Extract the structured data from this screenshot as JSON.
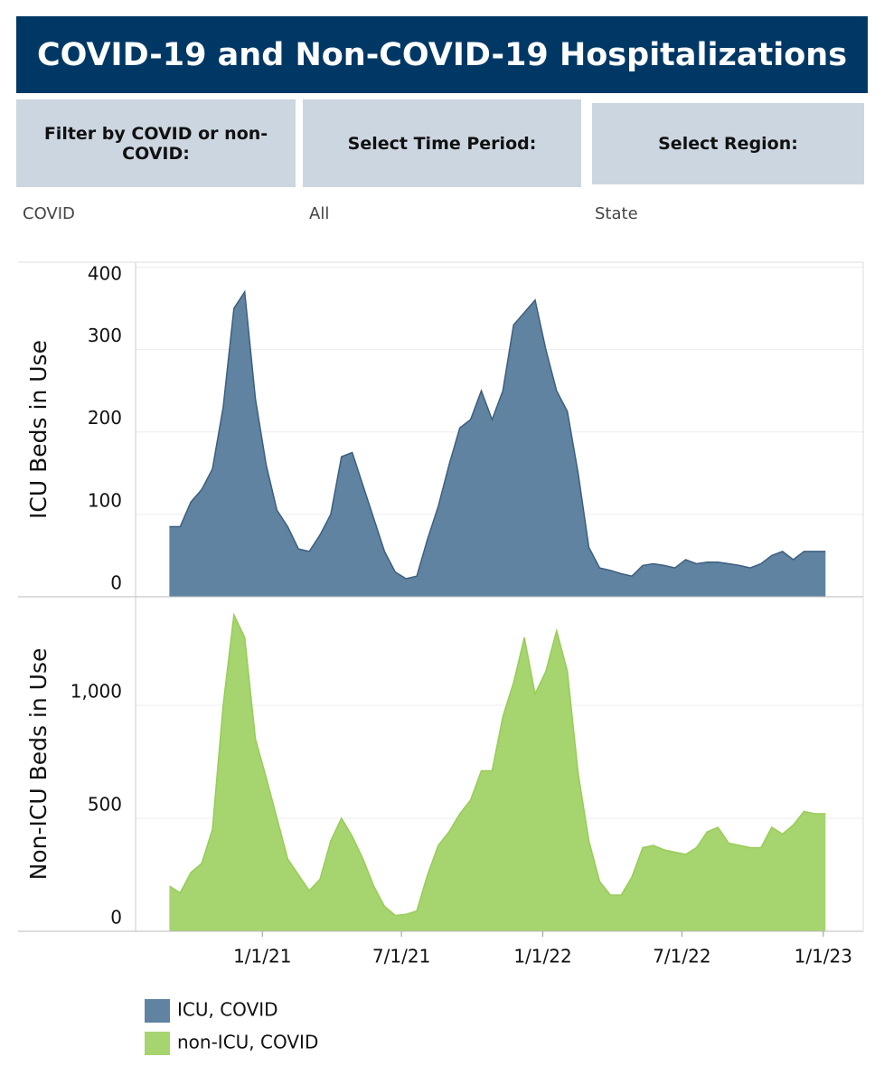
{
  "header": {
    "title": "COVID-19 and Non-COVID-19 Hospitalizations"
  },
  "filters": [
    {
      "label": "Filter by COVID or non-COVID:",
      "value": "COVID"
    },
    {
      "label": "Select Time Period:",
      "value": "All"
    },
    {
      "label": "Select Region:",
      "value": "State"
    }
  ],
  "chart_data": [
    {
      "type": "area",
      "ylabel": "ICU Beds in Use",
      "x": [
        "2020-09-02",
        "2020-09-16",
        "2020-09-30",
        "2020-10-14",
        "2020-10-28",
        "2020-11-11",
        "2020-11-25",
        "2020-12-09",
        "2020-12-23",
        "2021-01-06",
        "2021-01-20",
        "2021-02-03",
        "2021-02-17",
        "2021-03-03",
        "2021-03-17",
        "2021-03-31",
        "2021-04-14",
        "2021-04-28",
        "2021-05-12",
        "2021-05-26",
        "2021-06-09",
        "2021-06-23",
        "2021-07-07",
        "2021-07-21",
        "2021-08-04",
        "2021-08-18",
        "2021-09-01",
        "2021-09-15",
        "2021-09-29",
        "2021-10-13",
        "2021-10-27",
        "2021-11-10",
        "2021-11-24",
        "2021-12-08",
        "2021-12-22",
        "2022-01-05",
        "2022-01-19",
        "2022-02-02",
        "2022-02-16",
        "2022-03-02",
        "2022-03-16",
        "2022-03-30",
        "2022-04-13",
        "2022-04-27",
        "2022-05-11",
        "2022-05-25",
        "2022-06-08",
        "2022-06-22",
        "2022-07-06",
        "2022-07-20",
        "2022-08-03",
        "2022-08-17",
        "2022-08-31",
        "2022-09-14",
        "2022-09-28",
        "2022-10-12",
        "2022-10-26",
        "2022-11-09",
        "2022-11-23",
        "2022-12-07",
        "2022-12-21",
        "2023-01-04"
      ],
      "series": [
        {
          "name": "ICU, COVID",
          "color": "#5f83a1",
          "line_color": "#3e5f7e",
          "values": [
            85,
            85,
            115,
            130,
            155,
            230,
            350,
            370,
            240,
            160,
            105,
            85,
            58,
            55,
            75,
            100,
            170,
            175,
            135,
            95,
            55,
            30,
            22,
            25,
            70,
            110,
            160,
            205,
            215,
            250,
            215,
            250,
            330,
            345,
            360,
            300,
            250,
            225,
            150,
            60,
            35,
            32,
            28,
            25,
            38,
            40,
            38,
            35,
            45,
            40,
            42,
            42,
            40,
            38,
            35,
            40,
            50,
            55,
            45,
            55,
            55,
            55
          ]
        }
      ],
      "xlim": [
        "2020-07-20",
        "2023-02-22"
      ],
      "ylim": [
        0,
        406
      ],
      "yticks": [
        0,
        100,
        200,
        300,
        400
      ],
      "grid": true
    },
    {
      "type": "area",
      "ylabel": "Non-ICU Beds in Use",
      "x": [
        "2020-09-02",
        "2020-09-16",
        "2020-09-30",
        "2020-10-14",
        "2020-10-28",
        "2020-11-11",
        "2020-11-25",
        "2020-12-09",
        "2020-12-23",
        "2021-01-06",
        "2021-01-20",
        "2021-02-03",
        "2021-02-17",
        "2021-03-03",
        "2021-03-17",
        "2021-03-31",
        "2021-04-14",
        "2021-04-28",
        "2021-05-12",
        "2021-05-26",
        "2021-06-09",
        "2021-06-23",
        "2021-07-07",
        "2021-07-21",
        "2021-08-04",
        "2021-08-18",
        "2021-09-01",
        "2021-09-15",
        "2021-09-29",
        "2021-10-13",
        "2021-10-27",
        "2021-11-10",
        "2021-11-24",
        "2021-12-08",
        "2021-12-22",
        "2022-01-05",
        "2022-01-19",
        "2022-02-02",
        "2022-02-16",
        "2022-03-02",
        "2022-03-16",
        "2022-03-30",
        "2022-04-13",
        "2022-04-27",
        "2022-05-11",
        "2022-05-25",
        "2022-06-08",
        "2022-06-22",
        "2022-07-06",
        "2022-07-20",
        "2022-08-03",
        "2022-08-17",
        "2022-08-31",
        "2022-09-14",
        "2022-09-28",
        "2022-10-12",
        "2022-10-26",
        "2022-11-09",
        "2022-11-23",
        "2022-12-07",
        "2022-12-21",
        "2023-01-04"
      ],
      "series": [
        {
          "name": "non-ICU, COVID",
          "color": "#a6d46e",
          "line_color": "#98cc58",
          "values": [
            200,
            170,
            260,
            300,
            450,
            1000,
            1400,
            1300,
            850,
            680,
            500,
            320,
            250,
            180,
            230,
            400,
            500,
            420,
            320,
            200,
            110,
            70,
            75,
            90,
            250,
            380,
            440,
            520,
            580,
            710,
            710,
            950,
            1100,
            1300,
            1050,
            1150,
            1330,
            1150,
            700,
            400,
            220,
            160,
            160,
            240,
            370,
            380,
            360,
            350,
            340,
            370,
            440,
            460,
            390,
            380,
            370,
            370,
            460,
            430,
            470,
            530,
            520,
            520
          ]
        }
      ],
      "xlim": [
        "2020-07-20",
        "2023-02-22"
      ],
      "xticks": [
        {
          "value": "2021-01-01",
          "label": "1/1/21"
        },
        {
          "value": "2021-07-01",
          "label": "7/1/21"
        },
        {
          "value": "2022-01-01",
          "label": "1/1/22"
        },
        {
          "value": "2022-07-01",
          "label": "7/1/22"
        },
        {
          "value": "2023-01-01",
          "label": "1/1/23"
        }
      ],
      "ylim": [
        0,
        1480
      ],
      "yticks": [
        0,
        500,
        {
          "value": 1000,
          "label": "1,000"
        }
      ],
      "grid": true
    }
  ]
}
